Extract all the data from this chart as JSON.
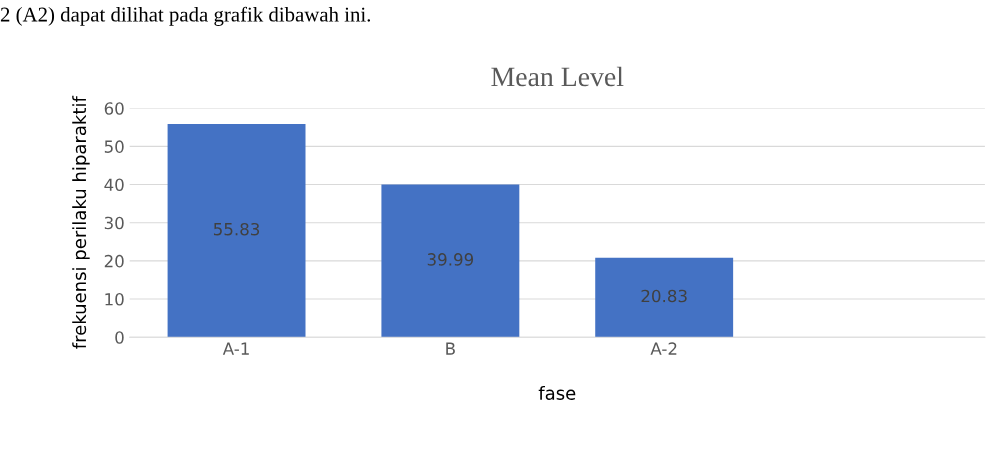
{
  "chart_data": {
    "type": "bar",
    "title": "Mean Level",
    "xlabel": "fase",
    "ylabel": "frekuensi perilaku hiparaktif",
    "categories": [
      "A-1",
      "B",
      "A-2",
      null
    ],
    "values": [
      55.83,
      39.99,
      20.83,
      null
    ],
    "color": "#4472c4",
    "ylim": [
      0,
      60
    ],
    "yticks": [
      0,
      10,
      20,
      30,
      40,
      50,
      60
    ],
    "grid": "y",
    "data_labels": true,
    "annotations": [
      "2 (A2) dapat dilihat pada grafik dibawah ini."
    ]
  }
}
